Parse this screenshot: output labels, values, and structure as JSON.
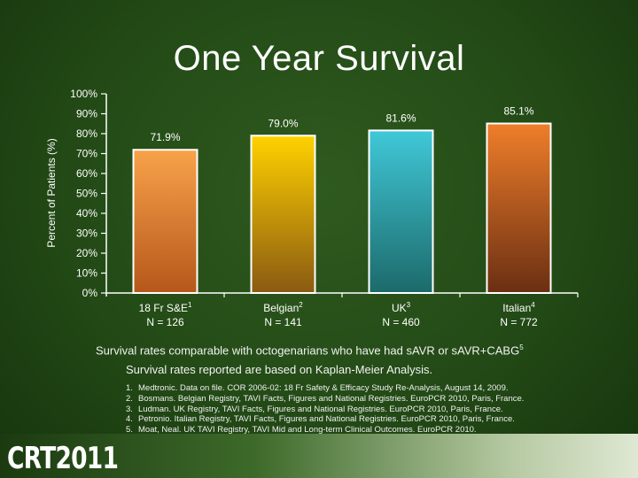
{
  "title": "One Year Survival",
  "chart_data": {
    "type": "bar",
    "ylabel": "Percent of Patients (%)",
    "ylim": [
      0,
      100
    ],
    "yticks": [
      "0%",
      "10%",
      "20%",
      "30%",
      "40%",
      "50%",
      "60%",
      "70%",
      "80%",
      "90%",
      "100%"
    ],
    "grid": false,
    "categories": [
      {
        "label": "18 Fr S&E",
        "sup": "1",
        "n": "N = 126"
      },
      {
        "label": "Belgian",
        "sup": "2",
        "n": "N = 141"
      },
      {
        "label": "UK",
        "sup": "3",
        "n": "N = 460"
      },
      {
        "label": "Italian",
        "sup": "4",
        "n": "N = 772"
      }
    ],
    "values": [
      71.9,
      79.0,
      81.6,
      85.1
    ],
    "value_labels": [
      "71.9%",
      "79.0%",
      "81.6%",
      "85.1%"
    ],
    "colors": {
      "bar1": [
        "#f8a24a",
        "#b5571b"
      ],
      "bar2": [
        "#ffd200",
        "#8a5a12"
      ],
      "bar3": [
        "#40c8d8",
        "#1c6a6a"
      ],
      "bar4": [
        "#ef7e2a",
        "#6a2f12"
      ]
    }
  },
  "captions": {
    "line1": "Survival rates comparable with octogenarians who have had sAVR or sAVR+CABG",
    "line1_sup": "5",
    "line2": "Survival rates reported are based on Kaplan-Meier Analysis."
  },
  "references": [
    {
      "num": "1.",
      "text": "Medtronic. Data on file. COR 2006-02: 18 Fr Safety & Efficacy Study Re-Analysis, August 14, 2009."
    },
    {
      "num": "2.",
      "text": "Bosmans. Belgian Registry, TAVI Facts, Figures and National Registries. EuroPCR 2010, Paris, France."
    },
    {
      "num": "3.",
      "text": "Ludman. UK Registry, TAVI Facts, Figures and National Registries. EuroPCR 2010, Paris, France."
    },
    {
      "num": "4.",
      "text": "Petronio. Italian Registry, TAVI Facts, Figures and National Registries. EuroPCR 2010, Paris, France."
    },
    {
      "num": "5.",
      "text": "Moat, Neal. UK TAVI Registry, TAVI Mid and Long-term Clinical Outcomes. EuroPCR 2010."
    }
  ],
  "logo": "CRT2011"
}
